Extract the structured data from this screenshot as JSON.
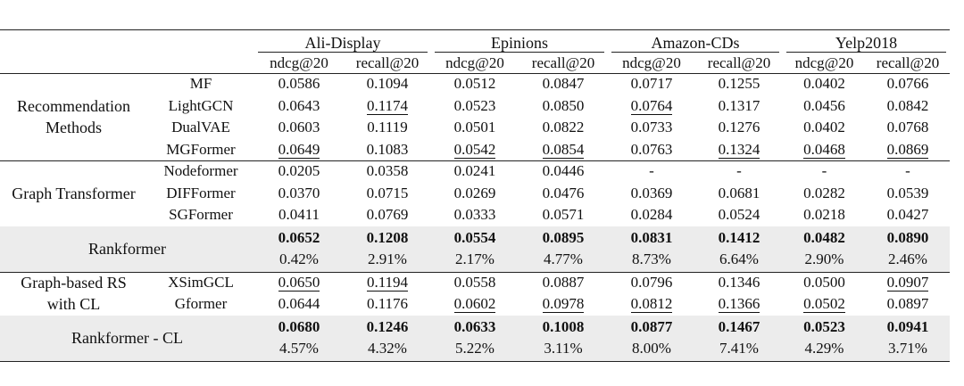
{
  "table": {
    "datasets": [
      "Ali-Display",
      "Epinions",
      "Amazon-CDs",
      "Yelp2018"
    ],
    "metrics": [
      "ndcg@20",
      "recall@20",
      "ndcg@20",
      "recall@20",
      "ndcg@20",
      "recall@20",
      "ndcg@20",
      "recall@20"
    ],
    "sections": [
      {
        "group": "Recommendation Methods",
        "rows": [
          {
            "method": "MF",
            "values": [
              "0.0586",
              "0.1094",
              "0.0512",
              "0.0847",
              "0.0717",
              "0.1255",
              "0.0402",
              "0.0766"
            ],
            "underline": []
          },
          {
            "method": "LightGCN",
            "values": [
              "0.0643",
              "0.1174",
              "0.0523",
              "0.0850",
              "0.0764",
              "0.1317",
              "0.0456",
              "0.0842"
            ],
            "underline": [
              1,
              4
            ]
          },
          {
            "method": "DualVAE",
            "values": [
              "0.0603",
              "0.1119",
              "0.0501",
              "0.0822",
              "0.0733",
              "0.1276",
              "0.0402",
              "0.0768"
            ],
            "underline": []
          },
          {
            "method": "MGFormer",
            "values": [
              "0.0649",
              "0.1083",
              "0.0542",
              "0.0854",
              "0.0763",
              "0.1324",
              "0.0468",
              "0.0869"
            ],
            "underline": [
              0,
              2,
              3,
              5,
              6,
              7
            ]
          }
        ]
      },
      {
        "group": "Graph Transformer",
        "rows": [
          {
            "method": "Nodeformer",
            "values": [
              "0.0205",
              "0.0358",
              "0.0241",
              "0.0446",
              "-",
              "-",
              "-",
              "-"
            ],
            "underline": []
          },
          {
            "method": "DIFFormer",
            "values": [
              "0.0370",
              "0.0715",
              "0.0269",
              "0.0476",
              "0.0369",
              "0.0681",
              "0.0282",
              "0.0539"
            ],
            "underline": []
          },
          {
            "method": "SGFormer",
            "values": [
              "0.0411",
              "0.0769",
              "0.0333",
              "0.0571",
              "0.0284",
              "0.0524",
              "0.0218",
              "0.0427"
            ],
            "underline": []
          }
        ]
      },
      {
        "highlight": "Rankformer",
        "values": [
          "0.0652",
          "0.1208",
          "0.0554",
          "0.0895",
          "0.0831",
          "0.1412",
          "0.0482",
          "0.0890"
        ],
        "improvements": [
          "0.42%",
          "2.91%",
          "2.17%",
          "4.77%",
          "8.73%",
          "6.64%",
          "2.90%",
          "2.46%"
        ]
      },
      {
        "group": "Graph-based RS with CL",
        "rows": [
          {
            "method": "XSimGCL",
            "values": [
              "0.0650",
              "0.1194",
              "0.0558",
              "0.0887",
              "0.0796",
              "0.1346",
              "0.0500",
              "0.0907"
            ],
            "underline": [
              0,
              1,
              7
            ]
          },
          {
            "method": "Gformer",
            "values": [
              "0.0644",
              "0.1176",
              "0.0602",
              "0.0978",
              "0.0812",
              "0.1366",
              "0.0502",
              "0.0897"
            ],
            "underline": [
              2,
              3,
              4,
              5,
              6
            ]
          }
        ]
      },
      {
        "highlight": "Rankformer - CL",
        "values": [
          "0.0680",
          "0.1246",
          "0.0633",
          "0.1008",
          "0.0877",
          "0.1467",
          "0.0523",
          "0.0941"
        ],
        "improvements": [
          "4.57%",
          "4.32%",
          "5.22%",
          "3.11%",
          "8.00%",
          "7.41%",
          "4.29%",
          "3.71%"
        ]
      }
    ]
  }
}
